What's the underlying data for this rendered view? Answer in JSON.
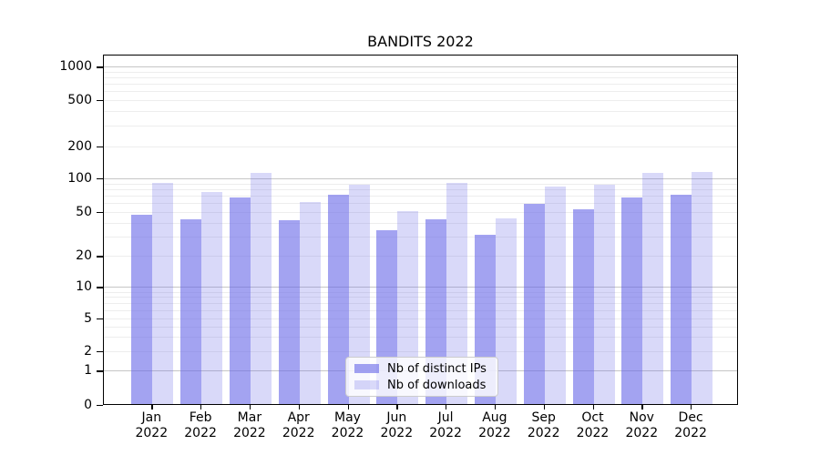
{
  "figure": {
    "title": "BANDITS 2022"
  },
  "chart_data": {
    "type": "bar",
    "title": "BANDITS 2022",
    "categories": [
      "Jan 2022",
      "Feb 2022",
      "Mar 2022",
      "Apr 2022",
      "May 2022",
      "Jun 2022",
      "Jul 2022",
      "Aug 2022",
      "Sep 2022",
      "Oct 2022",
      "Nov 2022",
      "Dec 2022"
    ],
    "series": [
      {
        "name": "Nb of distinct IPs",
        "color": "rgba(102,102,232,0.6)",
        "values": [
          47,
          43,
          68,
          42,
          71,
          34,
          43,
          31,
          59,
          53,
          68,
          71
        ]
      },
      {
        "name": "Nb of downloads",
        "color": "rgba(102,102,232,0.25)",
        "values": [
          92,
          76,
          113,
          62,
          88,
          51,
          91,
          44,
          84,
          88,
          112,
          115
        ]
      }
    ],
    "xlabel": "",
    "ylabel": "",
    "yscale": "symlog-like",
    "y_ticks": [
      0,
      1,
      2,
      5,
      10,
      20,
      50,
      100,
      200,
      500,
      1000
    ],
    "y_minor_gridlines": [
      2,
      3,
      4,
      5,
      6,
      7,
      8,
      9,
      20,
      30,
      40,
      50,
      60,
      70,
      80,
      90,
      200,
      300,
      400,
      500,
      600,
      700,
      800,
      900
    ],
    "y_major_gridlines": [
      1,
      10,
      100,
      1000
    ],
    "ylim": [
      0,
      1500
    ],
    "grid": "both",
    "legend_position": "lower center"
  },
  "colors": {
    "bar_ips": "rgba(102,102,232,0.6)",
    "bar_downloads": "rgba(102,102,232,0.25)",
    "grid_minor": "#ededed",
    "grid_major": "#c6c6c6",
    "spine": "#000000",
    "legend_border": "#cccccc",
    "legend_background": "rgba(255,255,255,0.8)",
    "text": "#000000"
  }
}
